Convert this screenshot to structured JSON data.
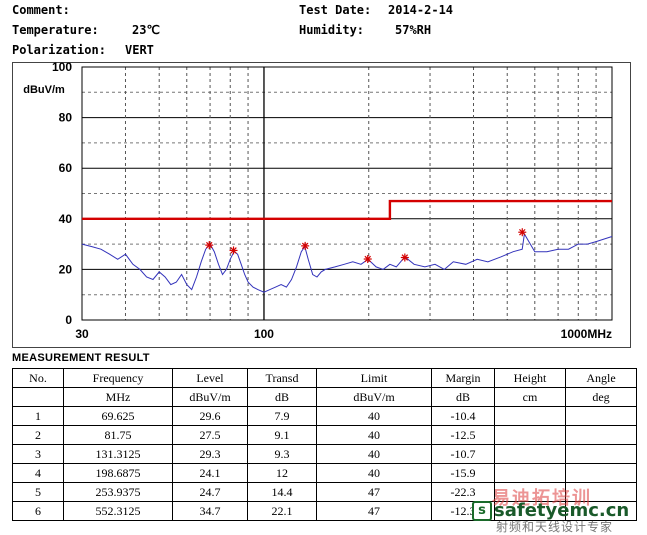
{
  "header": {
    "comment_label": "Comment:",
    "comment_value": "",
    "temperature_label": "Temperature:",
    "temperature_value": "23℃",
    "polarization_label": "Polarization:",
    "polarization_value": "VERT",
    "test_date_label": "Test Date:",
    "test_date_value": "2014-2-14",
    "humidity_label": "Humidity:",
    "humidity_value": "57%RH"
  },
  "chart_data": {
    "type": "line",
    "xscale": "log",
    "xlim": [
      30,
      1000
    ],
    "ylim": [
      0,
      100
    ],
    "ylabel": "dBuV/m",
    "y_ticks": [
      "0",
      "20",
      "40",
      "60",
      "80",
      "100"
    ],
    "x_ticks": [
      "30",
      "100",
      "1000MHz"
    ],
    "grid": true,
    "limit_line": {
      "color": "#d40000",
      "points": [
        [
          30,
          40
        ],
        [
          230,
          40
        ],
        [
          230,
          47
        ],
        [
          1000,
          47
        ]
      ]
    },
    "series": [
      {
        "color": "#3333bb",
        "x": [
          30,
          32,
          34,
          36,
          38,
          40,
          42,
          44,
          46,
          48,
          50,
          52,
          54,
          56,
          58,
          60,
          62,
          64,
          66,
          68,
          70,
          72,
          74,
          76,
          78,
          80,
          82,
          84,
          86,
          88,
          90,
          93,
          96,
          100,
          104,
          108,
          112,
          116,
          120,
          124,
          128,
          131,
          134,
          138,
          142,
          146,
          150,
          160,
          170,
          180,
          190,
          199,
          210,
          220,
          230,
          240,
          254,
          270,
          290,
          310,
          330,
          350,
          380,
          410,
          440,
          480,
          520,
          552,
          560,
          600,
          650,
          700,
          750,
          800,
          850,
          900,
          950,
          1000
        ],
        "y": [
          30,
          29,
          28,
          26,
          24,
          26,
          22,
          20,
          17,
          16,
          19,
          17,
          14,
          15,
          18,
          14,
          12,
          17,
          23,
          28,
          30,
          27,
          22,
          18,
          20,
          24,
          27,
          26,
          22,
          18,
          15,
          13,
          12,
          11,
          12,
          13,
          14,
          13,
          16,
          21,
          27,
          29,
          24,
          18,
          17,
          19,
          20,
          21,
          22,
          23,
          22,
          24,
          21,
          20,
          22,
          21,
          25,
          22,
          21,
          22,
          20,
          23,
          22,
          24,
          23,
          25,
          27,
          28,
          34,
          27,
          27,
          28,
          28,
          30,
          30,
          31,
          32,
          33
        ]
      }
    ],
    "markers": [
      {
        "x": 69.625,
        "y": 29.6
      },
      {
        "x": 81.75,
        "y": 27.5
      },
      {
        "x": 131.3125,
        "y": 29.3
      },
      {
        "x": 198.6875,
        "y": 24.1
      },
      {
        "x": 253.9375,
        "y": 24.7
      },
      {
        "x": 552.3125,
        "y": 34.7
      }
    ]
  },
  "results": {
    "title": "MEASUREMENT RESULT",
    "headers": [
      "No.",
      "Frequency",
      "Level",
      "Transd",
      "Limit",
      "Margin",
      "Height",
      "Angle"
    ],
    "units": [
      "",
      "MHz",
      "dBuV/m",
      "dB",
      "dBuV/m",
      "dB",
      "cm",
      "deg"
    ],
    "rows": [
      [
        "1",
        "69.625",
        "29.6",
        "7.9",
        "40",
        "-10.4",
        "",
        ""
      ],
      [
        "2",
        "81.75",
        "27.5",
        "9.1",
        "40",
        "-12.5",
        "",
        ""
      ],
      [
        "3",
        "131.3125",
        "29.3",
        "9.3",
        "40",
        "-10.7",
        "",
        ""
      ],
      [
        "4",
        "198.6875",
        "24.1",
        "12",
        "40",
        "-15.9",
        "",
        ""
      ],
      [
        "5",
        "253.9375",
        "24.7",
        "14.4",
        "47",
        "-22.3",
        "",
        ""
      ],
      [
        "6",
        "552.3125",
        "34.7",
        "22.1",
        "47",
        "-12.3",
        "",
        ""
      ]
    ]
  },
  "watermark": {
    "site": "safetyemc.cn",
    "logo_letter": "s",
    "cn_top": "易迪拓培训",
    "cn_bottom": "射频和天线设计专家"
  }
}
